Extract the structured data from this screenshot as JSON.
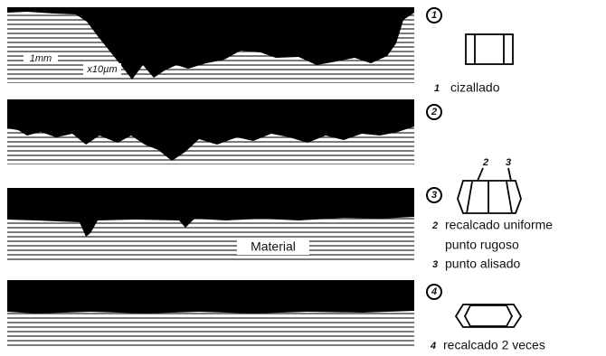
{
  "scale": {
    "length": "1mm",
    "magnification": "x10µm"
  },
  "material_label": "Material",
  "panels": [
    {
      "number": "1",
      "notes": [
        {
          "index": "1",
          "text": "cizallado"
        }
      ]
    },
    {
      "number": "2",
      "notes": []
    },
    {
      "number": "3",
      "callouts": [
        "2",
        "3"
      ],
      "notes": [
        {
          "index": "2",
          "text": "recalcado uniforme"
        },
        {
          "index": "",
          "text": "punto rugoso"
        },
        {
          "index": "3",
          "text": "punto alisado"
        }
      ]
    },
    {
      "number": "4",
      "notes": [
        {
          "index": "4",
          "text": "recalcado 2 veces"
        }
      ]
    }
  ]
}
